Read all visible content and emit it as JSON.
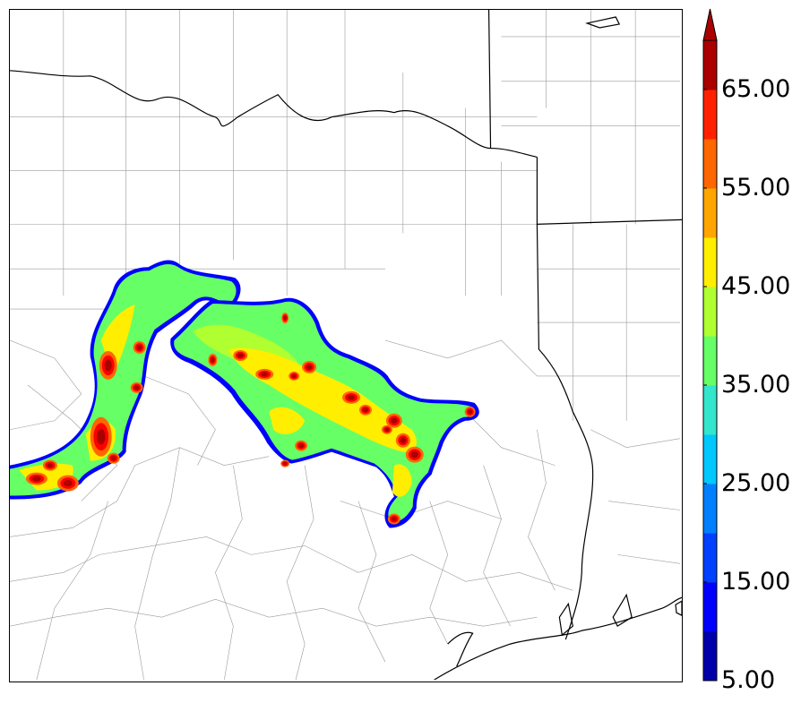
{
  "colorbar": {
    "tick_labels": [
      "5.00",
      "15.00",
      "25.00",
      "35.00",
      "45.00",
      "55.00",
      "65.00"
    ],
    "levels": [
      5,
      10,
      15,
      20,
      25,
      30,
      35,
      40,
      45,
      50,
      55,
      60,
      65,
      70
    ],
    "colors": [
      "#0000aa",
      "#0000ff",
      "#0040ff",
      "#0080ff",
      "#00c8ff",
      "#33e6cc",
      "#66ff66",
      "#b0ff30",
      "#ffee00",
      "#ffa500",
      "#ff6600",
      "#ff2200",
      "#aa0000"
    ],
    "extend": "max"
  },
  "map": {
    "field_colors": {
      "edge": "#0000ff",
      "low": "#33e6cc",
      "mid": "#66ff66",
      "midhigh": "#b0ff30",
      "high": "#ffee00",
      "core1": "#ff6600",
      "core2": "#ff0000",
      "core3": "#aa0000"
    }
  }
}
